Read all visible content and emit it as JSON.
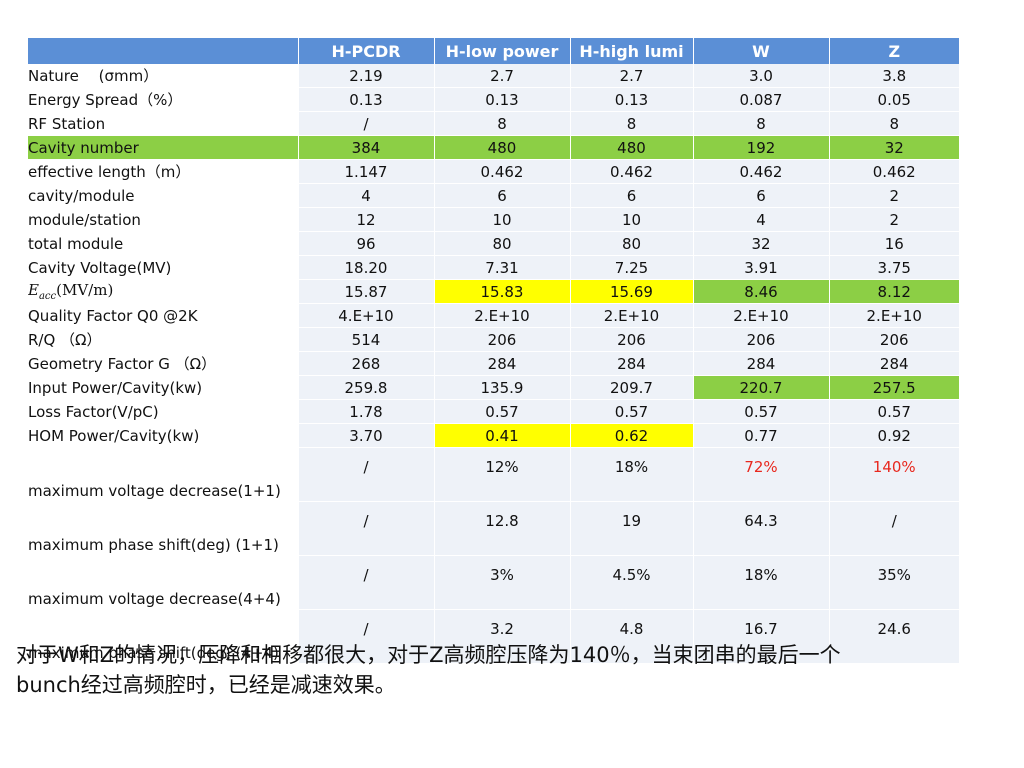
{
  "colors": {
    "header_bg": "#5b8fd6",
    "header_text": "#ffffff",
    "cell_bg": "#eef2f8",
    "highlight_green": "#8ccf45",
    "highlight_yellow": "#ffff00",
    "red_text": "#e8281e"
  },
  "table": {
    "columns": [
      "",
      "H-PCDR",
      "H-low power",
      "H-high lumi",
      "W",
      "Z"
    ],
    "rows": [
      {
        "label": "Nature  　(σmm）",
        "values": [
          "2.19",
          "2.7",
          "2.7",
          "3.0",
          "3.8"
        ]
      },
      {
        "label": "Energy Spread（%）",
        "values": [
          "0.13",
          "0.13",
          "0.13",
          "0.087",
          "0.05"
        ]
      },
      {
        "label": "RF Station",
        "values": [
          "/",
          "8",
          "8",
          "8",
          "8"
        ]
      },
      {
        "label": "Cavity number",
        "values": [
          "384",
          "480",
          "480",
          "192",
          "32"
        ],
        "highlight": "green"
      },
      {
        "label": "effective length（m）",
        "values": [
          "1.147",
          "0.462",
          "0.462",
          "0.462",
          "0.462"
        ]
      },
      {
        "label": "cavity/module",
        "values": [
          "4",
          "6",
          "6",
          "6",
          "2"
        ]
      },
      {
        "label": "module/station",
        "values": [
          "12",
          "10",
          "10",
          "4",
          "2"
        ]
      },
      {
        "label": "total module",
        "values": [
          "96",
          "80",
          "80",
          "32",
          "16"
        ]
      },
      {
        "label": "Cavity Voltage(MV)",
        "values": [
          "18.20",
          "7.31",
          "7.25",
          "3.91",
          "3.75"
        ]
      },
      {
        "label_symbol": "E",
        "label_sub": "acc",
        "label_unit": "(MV/m)",
        "values": [
          "15.87",
          "15.83",
          "15.69",
          "8.46",
          "8.12"
        ],
        "cell_highlight": [
          "",
          "yellow",
          "yellow",
          "green",
          "green"
        ]
      },
      {
        "label": "Quality Factor Q0 @2K",
        "values": [
          "4.E+10",
          "2.E+10",
          "2.E+10",
          "2.E+10",
          "2.E+10"
        ]
      },
      {
        "label": "R/Q （Ω）",
        "values": [
          "514",
          "206",
          "206",
          "206",
          "206"
        ]
      },
      {
        "label": "Geometry Factor G （Ω）",
        "values": [
          "268",
          "284",
          "284",
          "284",
          "284"
        ]
      },
      {
        "label": "Input Power/Cavity(kw)",
        "values": [
          "259.8",
          "135.9",
          "209.7",
          "220.7",
          "257.5"
        ],
        "cell_highlight": [
          "",
          "",
          "",
          "green",
          "green"
        ]
      },
      {
        "label": "Loss Factor(V/pC)",
        "values": [
          "1.78",
          "0.57",
          "0.57",
          "0.57",
          "0.57"
        ]
      },
      {
        "label": "HOM Power/Cavity(kw)",
        "values": [
          "3.70",
          "0.41",
          "0.62",
          "0.77",
          "0.92"
        ],
        "cell_highlight": [
          "",
          "yellow",
          "yellow",
          "",
          ""
        ]
      },
      {
        "label": "maximum voltage decrease(1+1)",
        "values": [
          "/",
          "12%",
          "18%",
          "72%",
          "140%"
        ],
        "tall": true,
        "cell_color": [
          "",
          "",
          "",
          "red",
          "red"
        ]
      },
      {
        "label": "maximum phase shift(deg) (1+1)",
        "values": [
          "/",
          "12.8",
          "19",
          "64.3",
          "/"
        ],
        "tall": true
      },
      {
        "label": "maximum voltage decrease(4+4)",
        "values": [
          "/",
          "3%",
          "4.5%",
          "18%",
          "35%"
        ],
        "tall": true
      },
      {
        "label": "maximum phase shift(deg) (4+4)",
        "values": [
          "/",
          "3.2",
          "4.8",
          "16.7",
          "24.6"
        ],
        "tall": true
      }
    ]
  },
  "note": {
    "line1": "对于W和Z的情况，压降和相移都很大，对于Z高频腔压降为140％，当束团串的最后一个",
    "line2": "bunch经过高频腔时，已经是减速效果。"
  }
}
